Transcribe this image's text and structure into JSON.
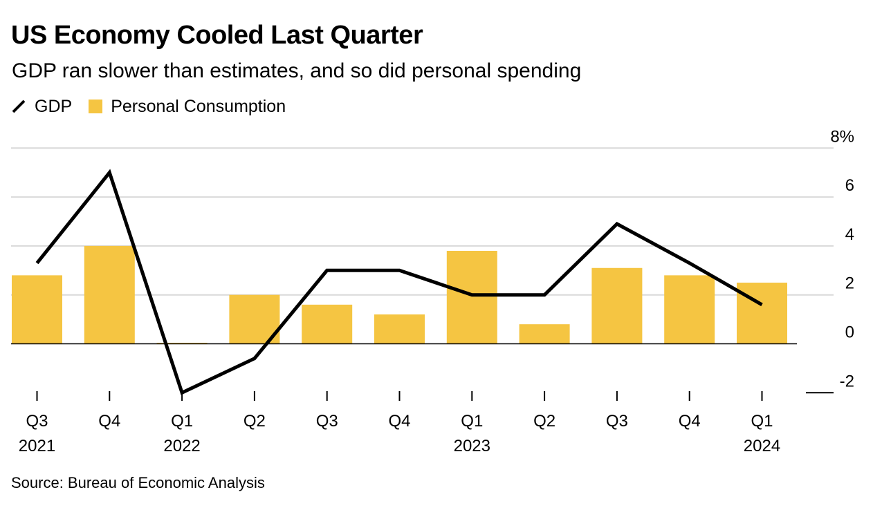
{
  "title": "US Economy Cooled Last Quarter",
  "subtitle": "GDP ran slower than estimates, and so did personal spending",
  "source": "Source: Bureau of Economic Analysis",
  "legend": {
    "gdp": "GDP",
    "consumption": "Personal Consumption"
  },
  "colors": {
    "gdp": "#000000",
    "consumption": "#F5C542",
    "grid": "#d9d9d9",
    "zero_line": "#000000"
  },
  "chart_data": {
    "type": "bar",
    "categories": [
      "Q3 2021",
      "Q4 2021",
      "Q1 2022",
      "Q2 2022",
      "Q3 2022",
      "Q4 2022",
      "Q1 2023",
      "Q2 2023",
      "Q3 2023",
      "Q4 2023",
      "Q1 2024"
    ],
    "x_tick_labels": [
      {
        "quarter": "Q3",
        "year": "2021"
      },
      {
        "quarter": "Q4",
        "year": ""
      },
      {
        "quarter": "Q1",
        "year": "2022"
      },
      {
        "quarter": "Q2",
        "year": ""
      },
      {
        "quarter": "Q3",
        "year": ""
      },
      {
        "quarter": "Q4",
        "year": ""
      },
      {
        "quarter": "Q1",
        "year": "2023"
      },
      {
        "quarter": "Q2",
        "year": ""
      },
      {
        "quarter": "Q3",
        "year": ""
      },
      {
        "quarter": "Q4",
        "year": ""
      },
      {
        "quarter": "Q1",
        "year": "2024"
      }
    ],
    "series": [
      {
        "name": "Personal Consumption",
        "type": "bar",
        "values": [
          2.8,
          4.0,
          0.0,
          2.0,
          1.6,
          1.2,
          3.8,
          0.8,
          3.1,
          2.8,
          2.5
        ]
      },
      {
        "name": "GDP",
        "type": "line",
        "values": [
          3.3,
          7.0,
          -2.0,
          -0.6,
          3.0,
          3.0,
          2.0,
          2.0,
          4.9,
          3.3,
          1.6
        ]
      }
    ],
    "y_ticks": [
      {
        "value": 8,
        "label": "8%"
      },
      {
        "value": 6,
        "label": "6"
      },
      {
        "value": 4,
        "label": "4"
      },
      {
        "value": 2,
        "label": "2"
      },
      {
        "value": 0,
        "label": "0"
      },
      {
        "value": -2,
        "label": "-2"
      }
    ],
    "ylim": [
      -2,
      8
    ],
    "axis_side": "right",
    "grid": true,
    "legend_position": "top-left"
  }
}
